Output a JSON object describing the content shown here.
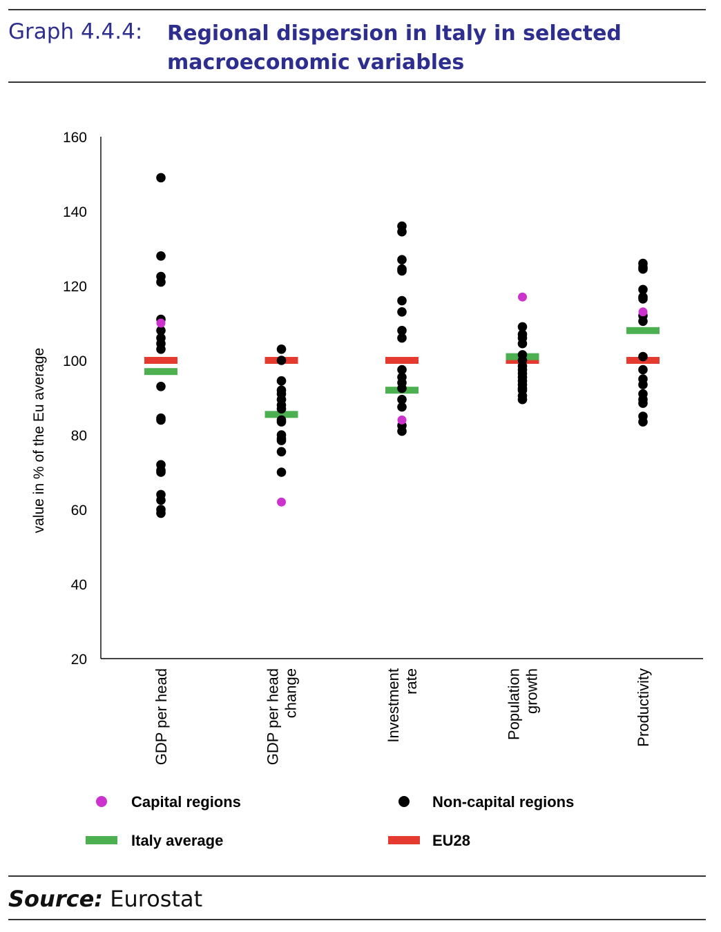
{
  "header": {
    "graph_number": "Graph 4.4.4:",
    "title": "Regional dispersion in Italy in selected macroeconomic variables"
  },
  "chart_data": {
    "type": "scatter",
    "title": "Regional dispersion in Italy in selected macroeconomic variables",
    "ylabel": "value in % of the Eu average",
    "ylim": [
      20,
      160
    ],
    "yticks": [
      20,
      40,
      60,
      80,
      100,
      120,
      140,
      160
    ],
    "categories": [
      {
        "label_lines": [
          "GDP per head"
        ]
      },
      {
        "label_lines": [
          "GDP per head",
          "change"
        ]
      },
      {
        "label_lines": [
          "Investment",
          "rate"
        ]
      },
      {
        "label_lines": [
          "Population",
          "growth"
        ]
      },
      {
        "label_lines": [
          "Productivity"
        ]
      }
    ],
    "series": [
      {
        "name": "Non-capital regions",
        "marker": "dot",
        "color": "#000000",
        "values": [
          [
            149,
            128,
            122.5,
            121,
            111,
            108,
            106,
            104.5,
            103,
            93,
            84.5,
            84,
            72,
            70.5,
            70,
            64,
            62.5,
            60,
            59
          ],
          [
            103,
            100,
            94.5,
            92,
            91,
            89.5,
            88,
            87,
            84,
            83.5,
            80,
            79,
            78.5,
            75.5,
            70
          ],
          [
            136,
            134.5,
            127,
            124.5,
            124,
            116,
            113,
            108,
            106,
            97.5,
            95.5,
            94,
            92.5,
            89.5,
            87.5,
            82.5,
            81
          ],
          [
            109,
            107,
            106,
            104.5,
            101.5,
            100,
            98.5,
            97.5,
            96.5,
            95.5,
            94.5,
            93.5,
            92.5,
            92,
            90.5,
            89.5
          ],
          [
            126,
            125,
            124.5,
            119,
            117,
            116.5,
            112,
            110.5,
            101,
            97.5,
            95,
            93.5,
            91,
            89.5,
            88.5,
            85,
            83.5
          ]
        ]
      },
      {
        "name": "Capital regions",
        "marker": "dot",
        "color": "#cc33cc",
        "values": [
          [
            110
          ],
          [
            62
          ],
          [
            84
          ],
          [
            117
          ],
          [
            113
          ]
        ]
      },
      {
        "name": "Italy average",
        "marker": "bar",
        "color": "#4caf50",
        "values": [
          97,
          85.5,
          92,
          101,
          108
        ]
      },
      {
        "name": "EU28",
        "marker": "bar",
        "color": "#e53a2f",
        "values": [
          100,
          100,
          100,
          100,
          100
        ]
      }
    ],
    "legend": {
      "placement": "bottom",
      "items": [
        {
          "series": "Capital regions",
          "label": "Capital regions"
        },
        {
          "series": "Non-capital regions",
          "label": "Non-capital regions"
        },
        {
          "series": "Italy average",
          "label": "Italy average"
        },
        {
          "series": "EU28",
          "label": "EU28"
        }
      ]
    }
  },
  "source": {
    "label": "Source:",
    "text": "Eurostat"
  }
}
